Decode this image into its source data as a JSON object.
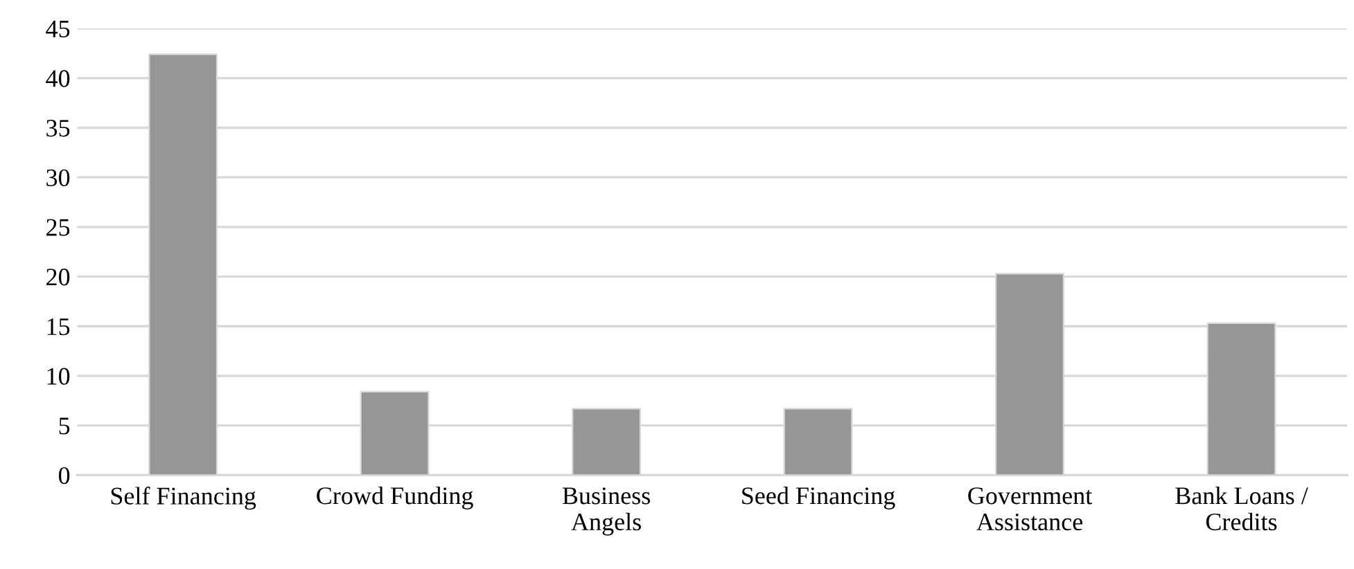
{
  "chart_data": {
    "type": "bar",
    "categories": [
      "Self Financing",
      "Crowd Funding",
      "Business\nAngels",
      "Seed Financing",
      "Government\nAssistance",
      "Bank Loans /\nCredits"
    ],
    "values": [
      42.4,
      8.4,
      6.7,
      6.7,
      20.3,
      15.3
    ],
    "color": "#969696",
    "ylim": [
      0,
      45
    ],
    "yticks": [
      0,
      5,
      10,
      15,
      20,
      25,
      30,
      35,
      40,
      45
    ],
    "grid": "y"
  }
}
